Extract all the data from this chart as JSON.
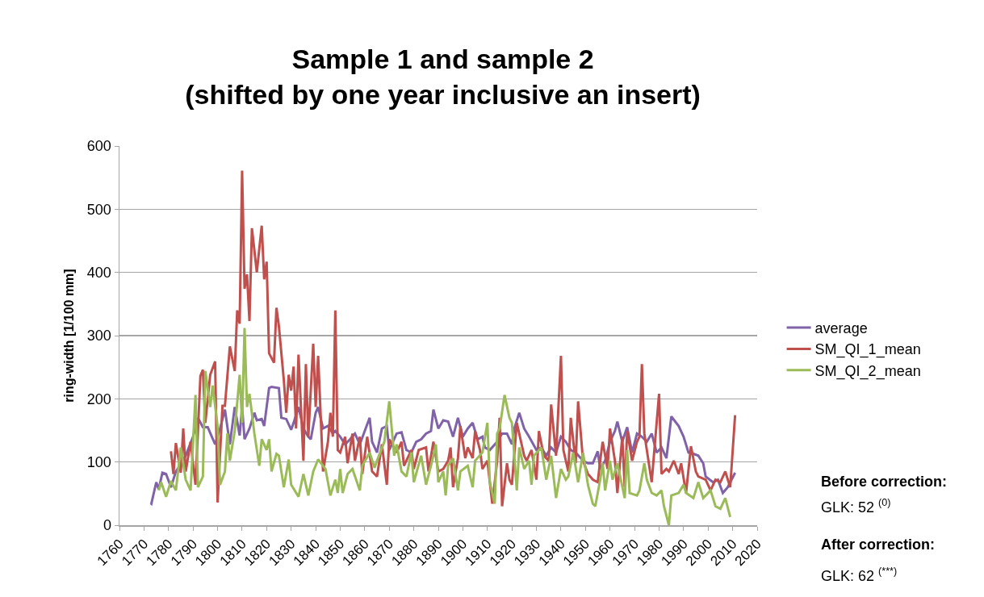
{
  "chart_data": {
    "type": "line",
    "title": "Sample 1 and sample 2 (shifted by one year inclusive an insert)",
    "ylabel": "ring-width [1/100 mm]",
    "xlim": [
      1760,
      2020
    ],
    "xticks": [
      1760,
      1770,
      1780,
      1790,
      1800,
      1810,
      1820,
      1830,
      1840,
      1850,
      1860,
      1870,
      1880,
      1890,
      1900,
      1910,
      1920,
      1930,
      1940,
      1950,
      1960,
      1970,
      1980,
      1990,
      2000,
      2010,
      2020
    ],
    "ylim": [
      0,
      600
    ],
    "yticks": [
      0,
      100,
      200,
      300,
      400,
      500,
      600
    ],
    "grid": "y",
    "legend": "right",
    "marker": "none",
    "line_style": "solid",
    "annotations": [
      "Before correction:",
      "GLK: 52 $^{(0)}$",
      "After correction:",
      "GLK: 62 $^{(***)}$"
    ],
    "series": [
      {
        "name": "average",
        "color": "#7f62a8",
        "x": [
          1772.7,
          1773,
          1775,
          1776,
          1777.5,
          1779,
          1781,
          1783,
          1785,
          1787,
          1790,
          1792,
          1794,
          1796,
          1799,
          1801,
          1803,
          1805,
          1807,
          1809,
          1810,
          1811,
          1813,
          1815,
          1816,
          1818,
          1819,
          1821,
          1822,
          1825,
          1826,
          1828,
          1830,
          1831,
          1833,
          1835,
          1837,
          1838,
          1840,
          1841,
          1843,
          1845,
          1847,
          1848,
          1850,
          1852,
          1854,
          1856,
          1858,
          1862,
          1863,
          1865,
          1867,
          1869,
          1870,
          1873,
          1875,
          1877,
          1879,
          1881,
          1883,
          1885,
          1887,
          1888,
          1890,
          1892,
          1894,
          1896,
          1898,
          1900,
          1902,
          1904,
          1906,
          1908,
          1909,
          1911,
          1914,
          1916,
          1918,
          1920,
          1921,
          1923,
          1925,
          1927,
          1930,
          1932,
          1934,
          1936,
          1938,
          1940,
          1942,
          1944,
          1946,
          1949,
          1951,
          1953,
          1955,
          1956,
          1958,
          1960,
          1962,
          1963,
          1965,
          1967,
          1969,
          1971,
          1973,
          1975,
          1977,
          1979,
          1981,
          1983,
          1985,
          1988,
          1990,
          1992,
          1994,
          1996,
          1998,
          1999,
          2002,
          2004,
          2006,
          2008,
          2011
        ],
        "values": [
          35,
          34,
          68,
          57,
          83,
          81,
          60,
          85,
          96,
          110,
          140,
          170,
          155,
          155,
          128,
          153,
          183,
          128,
          187,
          142,
          187,
          136,
          153,
          178,
          166,
          168,
          157,
          217,
          219,
          217,
          170,
          168,
          151,
          162,
          187,
          153,
          140,
          136,
          178,
          187,
          153,
          157,
          145,
          149,
          140,
          128,
          136,
          145,
          128,
          170,
          132,
          115,
          153,
          157,
          119,
          145,
          147,
          119,
          115,
          132,
          136,
          145,
          149,
          183,
          153,
          166,
          164,
          140,
          170,
          140,
          153,
          162,
          136,
          140,
          123,
          119,
          132,
          145,
          145,
          128,
          153,
          178,
          153,
          140,
          119,
          123,
          110,
          123,
          115,
          140,
          132,
          119,
          115,
          102,
          98,
          98,
          117,
          89,
          102,
          132,
          149,
          164,
          132,
          155,
          115,
          145,
          140,
          132,
          145,
          115,
          123,
          106,
          172,
          157,
          140,
          115,
          113,
          110,
          98,
          77,
          68,
          72,
          51,
          60,
          83
        ]
      },
      {
        "name": "SM_QI_1_mean",
        "color": "#c0504d",
        "x": [
          1781,
          1782,
          1783,
          1785,
          1786,
          1787,
          1789,
          1791,
          1793,
          1794,
          1795,
          1797,
          1799,
          1800,
          1802,
          1803,
          1805,
          1807,
          1808,
          1809,
          1810,
          1811,
          1812,
          1813,
          1814,
          1816,
          1818,
          1819,
          1820,
          1821,
          1823,
          1824,
          1825,
          1827,
          1828,
          1829,
          1830,
          1831,
          1832,
          1833,
          1835,
          1836,
          1837,
          1839,
          1840,
          1841,
          1843,
          1845,
          1846,
          1847,
          1848,
          1849,
          1850,
          1852,
          1853,
          1855,
          1856,
          1858,
          1859,
          1861,
          1863,
          1865,
          1867,
          1869,
          1870,
          1873,
          1875,
          1876,
          1879,
          1880,
          1882,
          1885,
          1886,
          1888,
          1890,
          1892,
          1894,
          1895,
          1896,
          1898,
          1899,
          1901,
          1902,
          1904,
          1905,
          1907,
          1908,
          1910,
          1912,
          1914,
          1915,
          1916,
          1918,
          1919,
          1920,
          1922,
          1925,
          1926,
          1928,
          1930,
          1931,
          1933,
          1935,
          1936,
          1938,
          1940,
          1941,
          1943,
          1944,
          1946,
          1947,
          1949,
          1951,
          1953,
          1955,
          1956,
          1957,
          1959,
          1960,
          1962,
          1963,
          1965,
          1966,
          1967,
          1969,
          1971,
          1972,
          1973,
          1974,
          1977,
          1978,
          1980,
          1981,
          1983,
          1984,
          1986,
          1988,
          1989,
          1991,
          1993,
          1995,
          1996,
          1999,
          2001,
          2003,
          2005,
          2007,
          2009,
          2011
        ],
        "values": [
          117,
          81,
          130,
          83,
          153,
          85,
          132,
          64,
          236,
          246,
          162,
          238,
          259,
          36,
          189,
          189,
          283,
          244,
          340,
          319,
          561,
          374,
          397,
          323,
          470,
          400,
          474,
          389,
          417,
          272,
          257,
          344,
          315,
          230,
          178,
          238,
          213,
          251,
          153,
          270,
          102,
          255,
          140,
          287,
          187,
          268,
          85,
          132,
          178,
          140,
          340,
          119,
          115,
          140,
          98,
          145,
          102,
          140,
          81,
          140,
          85,
          77,
          128,
          64,
          136,
          115,
          132,
          94,
          119,
          89,
          119,
          123,
          85,
          132,
          85,
          89,
          102,
          123,
          60,
          106,
          157,
          106,
          123,
          106,
          149,
          119,
          89,
          102,
          34,
          102,
          170,
          30,
          98,
          72,
          64,
          162,
          110,
          102,
          119,
          72,
          149,
          110,
          102,
          191,
          110,
          268,
          119,
          85,
          170,
          98,
          196,
          102,
          81,
          72,
          68,
          102,
          132,
          89,
          153,
          102,
          51,
          140,
          60,
          149,
          102,
          132,
          140,
          255,
          145,
          68,
          115,
          208,
          81,
          89,
          85,
          102,
          81,
          98,
          51,
          125,
          85,
          77,
          72,
          55,
          72,
          68,
          85,
          60,
          174
        ]
      },
      {
        "name": "SM_QI_2_mean",
        "color": "#9bbb59",
        "x": [
          1776,
          1777,
          1779,
          1781,
          1783,
          1785,
          1787,
          1789,
          1791,
          1792,
          1794,
          1795,
          1797,
          1798,
          1800,
          1801,
          1803,
          1804,
          1805,
          1807,
          1809,
          1810,
          1811,
          1812,
          1813,
          1815,
          1817,
          1818,
          1820,
          1821,
          1822,
          1824,
          1825,
          1827,
          1829,
          1830,
          1833,
          1835,
          1837,
          1839,
          1841,
          1844,
          1846,
          1848,
          1849,
          1850,
          1851,
          1853,
          1855,
          1858,
          1859,
          1862,
          1864,
          1865,
          1868,
          1870,
          1872,
          1873,
          1875,
          1877,
          1879,
          1880,
          1883,
          1885,
          1887,
          1889,
          1890,
          1892,
          1893,
          1894,
          1896,
          1898,
          1899,
          1902,
          1904,
          1905,
          1908,
          1910,
          1911,
          1913,
          1914,
          1915,
          1917,
          1919,
          1920,
          1922,
          1923,
          1925,
          1927,
          1928,
          1929,
          1932,
          1934,
          1936,
          1938,
          1940,
          1942,
          1943,
          1945,
          1947,
          1949,
          1951,
          1953,
          1954,
          1956,
          1957,
          1958,
          1960,
          1961,
          1963,
          1966,
          1967,
          1968,
          1971,
          1972,
          1974,
          1975,
          1977,
          1979,
          1981,
          1982,
          1984,
          1985,
          1988,
          1990,
          1991,
          1994,
          1996,
          1998,
          2001,
          2003,
          2005,
          2007,
          2009
        ],
        "values": [
          55,
          68,
          45,
          70,
          55,
          123,
          72,
          55,
          206,
          60,
          77,
          244,
          187,
          221,
          157,
          64,
          85,
          145,
          102,
          149,
          238,
          162,
          312,
          187,
          208,
          145,
          94,
          136,
          119,
          136,
          85,
          113,
          110,
          60,
          104,
          64,
          45,
          81,
          47,
          85,
          104,
          89,
          47,
          72,
          51,
          89,
          51,
          81,
          89,
          55,
          94,
          115,
          91,
          102,
          132,
          196,
          110,
          128,
          85,
          77,
          115,
          68,
          110,
          64,
          94,
          128,
          68,
          85,
          47,
          94,
          106,
          55,
          85,
          94,
          60,
          102,
          115,
          162,
          68,
          34,
          145,
          153,
          206,
          170,
          162,
          55,
          123,
          89,
          102,
          64,
          110,
          123,
          72,
          110,
          43,
          89,
          72,
          77,
          115,
          68,
          115,
          64,
          34,
          30,
          72,
          98,
          55,
          102,
          72,
          98,
          43,
          119,
          51,
          47,
          55,
          98,
          72,
          51,
          47,
          55,
          30,
          0,
          47,
          51,
          64,
          51,
          43,
          68,
          43,
          55,
          30,
          26,
          43,
          13
        ]
      }
    ]
  }
}
